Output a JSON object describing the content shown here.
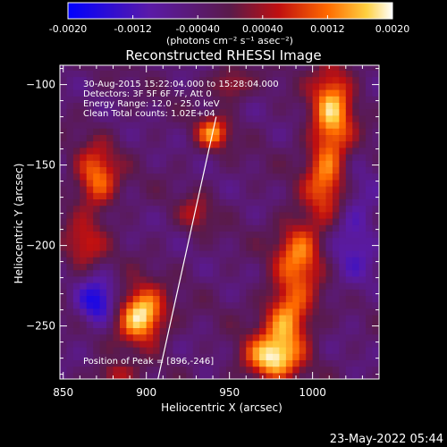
{
  "chart_data": {
    "type": "heatmap",
    "title": "Reconstructed RHESSI Image",
    "xlabel": "Heliocentric X (arcsec)",
    "ylabel": "Heliocentric Y (arcsec)",
    "xlim": [
      848,
      1040
    ],
    "ylim": [
      -283,
      -88
    ],
    "xticks": [
      850,
      900,
      950,
      1000
    ],
    "yticks": [
      -100,
      -150,
      -200,
      -250
    ],
    "colorbar": {
      "label": "(photons cm⁻² s⁻¹ asec⁻²)",
      "range": [
        -0.002,
        0.002
      ],
      "ticks": [
        "-0.0020",
        "-0.0012",
        "-0.00040",
        "0.00040",
        "0.0012",
        "0.0020"
      ],
      "tick_values": [
        -0.002,
        -0.0012,
        -0.0004,
        0.0004,
        0.0012,
        0.002
      ]
    },
    "info_lines": [
      "30-Aug-2015 15:22:04.000 to 15:28:04.000",
      "Detectors: 3F 5F 6F 7F, Att 0",
      "Energy Range: 12.0 - 25.0 keV",
      "Clean    Total counts: 1.02E+04"
    ],
    "peak_label": "Position of Peak = [896,-246]",
    "peak": [
      896,
      -246
    ],
    "limb_line": {
      "x": [
        907,
        942
      ],
      "y": [
        -283,
        -120
      ]
    },
    "sources": [
      {
        "x": 897,
        "y": -243,
        "sx": 10,
        "sy": 12,
        "amp": 0.0024
      },
      {
        "x": 870,
        "y": -158,
        "sx": 9,
        "sy": 14,
        "amp": 0.0016
      },
      {
        "x": 862,
        "y": -200,
        "sx": 9,
        "sy": 11,
        "amp": 0.001
      },
      {
        "x": 1012,
        "y": -115,
        "sx": 9,
        "sy": 22,
        "amp": 0.0018
      },
      {
        "x": 1008,
        "y": -160,
        "sx": 9,
        "sy": 18,
        "amp": 0.0014
      },
      {
        "x": 992,
        "y": -205,
        "sx": 10,
        "sy": 16,
        "amp": 0.0016
      },
      {
        "x": 985,
        "y": -245,
        "sx": 10,
        "sy": 14,
        "amp": 0.0018
      },
      {
        "x": 975,
        "y": -270,
        "sx": 12,
        "sy": 10,
        "amp": 0.002
      },
      {
        "x": 940,
        "y": -130,
        "sx": 7,
        "sy": 7,
        "amp": 0.0016
      },
      {
        "x": 950,
        "y": -100,
        "sx": 8,
        "sy": 7,
        "amp": 0.001
      },
      {
        "x": 930,
        "y": -180,
        "sx": 7,
        "sy": 8,
        "amp": 0.0008
      },
      {
        "x": 880,
        "y": -280,
        "sx": 8,
        "sy": 5,
        "amp": 0.001
      },
      {
        "x": 870,
        "y": -235,
        "sx": 8,
        "sy": 10,
        "amp": -0.0014
      },
      {
        "x": 1025,
        "y": -190,
        "sx": 10,
        "sy": 25,
        "amp": -0.0008
      }
    ]
  },
  "footer_date": "23-May-2022 05:44"
}
